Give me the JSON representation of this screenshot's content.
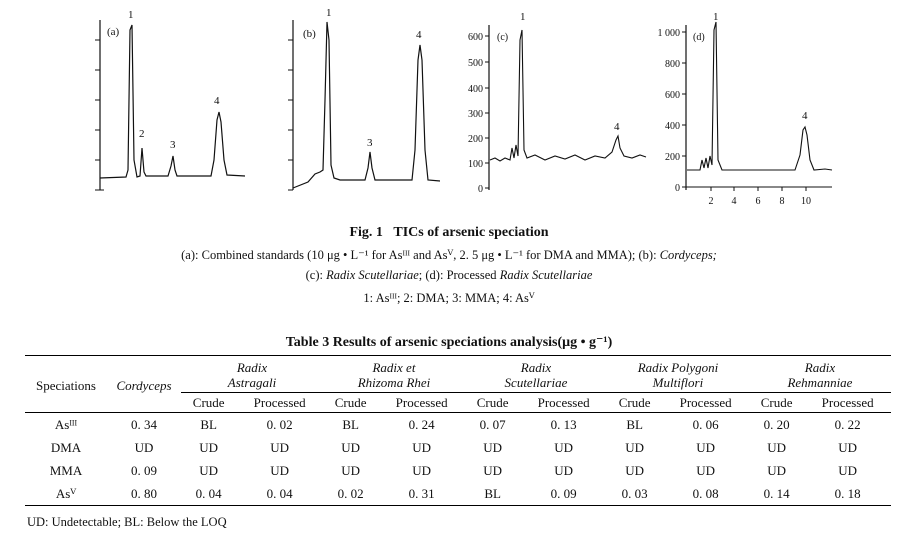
{
  "figure": {
    "panels": [
      {
        "label": "(a)",
        "yticks": [],
        "xticks": [],
        "peaks": [
          {
            "text": "1"
          },
          {
            "text": "2"
          },
          {
            "text": "3"
          },
          {
            "text": "4"
          }
        ]
      },
      {
        "label": "(b)",
        "yticks": [],
        "xticks": [],
        "peaks": [
          {
            "text": "1"
          },
          {
            "text": "3"
          },
          {
            "text": "4"
          }
        ]
      },
      {
        "label": "(c)",
        "yticks": [
          "600",
          "500",
          "400",
          "300",
          "200",
          "100",
          "0"
        ],
        "xticks": [],
        "peaks": [
          {
            "text": "1"
          },
          {
            "text": "4"
          }
        ]
      },
      {
        "label": "(d)",
        "yticks": [
          "1 000",
          "800",
          "600",
          "400",
          "200",
          "0"
        ],
        "xticks": [
          "2",
          "4",
          "6",
          "8",
          "10"
        ],
        "peaks": [
          {
            "text": "1"
          },
          {
            "text": "4"
          }
        ]
      }
    ],
    "caption_number": "Fig. 1",
    "caption_title": "TICs of arsenic speciation",
    "caption_line1": "(a): Combined standards (10 μg • L⁻¹ for Asᴵᴵᴵ and Asⱽ, 2. 5 μg • L⁻¹ for DMA and MMA); (b):",
    "caption_line1_italic": "Cordyceps;",
    "caption_line2_a": "(c):",
    "caption_line2_b": "Radix Scutellariae",
    "caption_line2_c": "; (d): Processed",
    "caption_line2_d": "Radix Scutellariae",
    "caption_line3": "1: Asᴵᴵᴵ; 2: DMA; 3: MMA; 4: Asⱽ"
  },
  "table": {
    "title": "Table 3   Results of arsenic speciations analysis(μg • g⁻¹)",
    "col_speciations": "Speciations",
    "col_cordyceps": "Cordyceps",
    "groups": [
      {
        "l1": "Radix",
        "l2": "Astragali"
      },
      {
        "l1": "Radix et",
        "l2": "Rhizoma Rhei"
      },
      {
        "l1": "Radix",
        "l2": "Scutellariae"
      },
      {
        "l1": "Radix Polygoni",
        "l2": "Multiflori"
      },
      {
        "l1": "Radix",
        "l2": "Rehmanniae"
      }
    ],
    "sub_crude": "Crude",
    "sub_processed": "Processed",
    "rows": [
      {
        "name": "Asᴵᴵᴵ",
        "cells": [
          "0. 34",
          "BL",
          "0. 02",
          "BL",
          "0. 24",
          "0. 07",
          "0. 13",
          "BL",
          "0. 06",
          "0. 20",
          "0. 22"
        ]
      },
      {
        "name": "DMA",
        "cells": [
          "UD",
          "UD",
          "UD",
          "UD",
          "UD",
          "UD",
          "UD",
          "UD",
          "UD",
          "UD",
          "UD"
        ]
      },
      {
        "name": "MMA",
        "cells": [
          "0. 09",
          "UD",
          "UD",
          "UD",
          "UD",
          "UD",
          "UD",
          "UD",
          "UD",
          "UD",
          "UD"
        ]
      },
      {
        "name": "Asⱽ",
        "cells": [
          "0. 80",
          "0. 04",
          "0. 04",
          "0. 02",
          "0. 31",
          "BL",
          "0. 09",
          "0. 03",
          "0. 08",
          "0. 14",
          "0. 18"
        ]
      }
    ],
    "footnote": "UD: Undetectable; BL: Below the LOQ"
  }
}
